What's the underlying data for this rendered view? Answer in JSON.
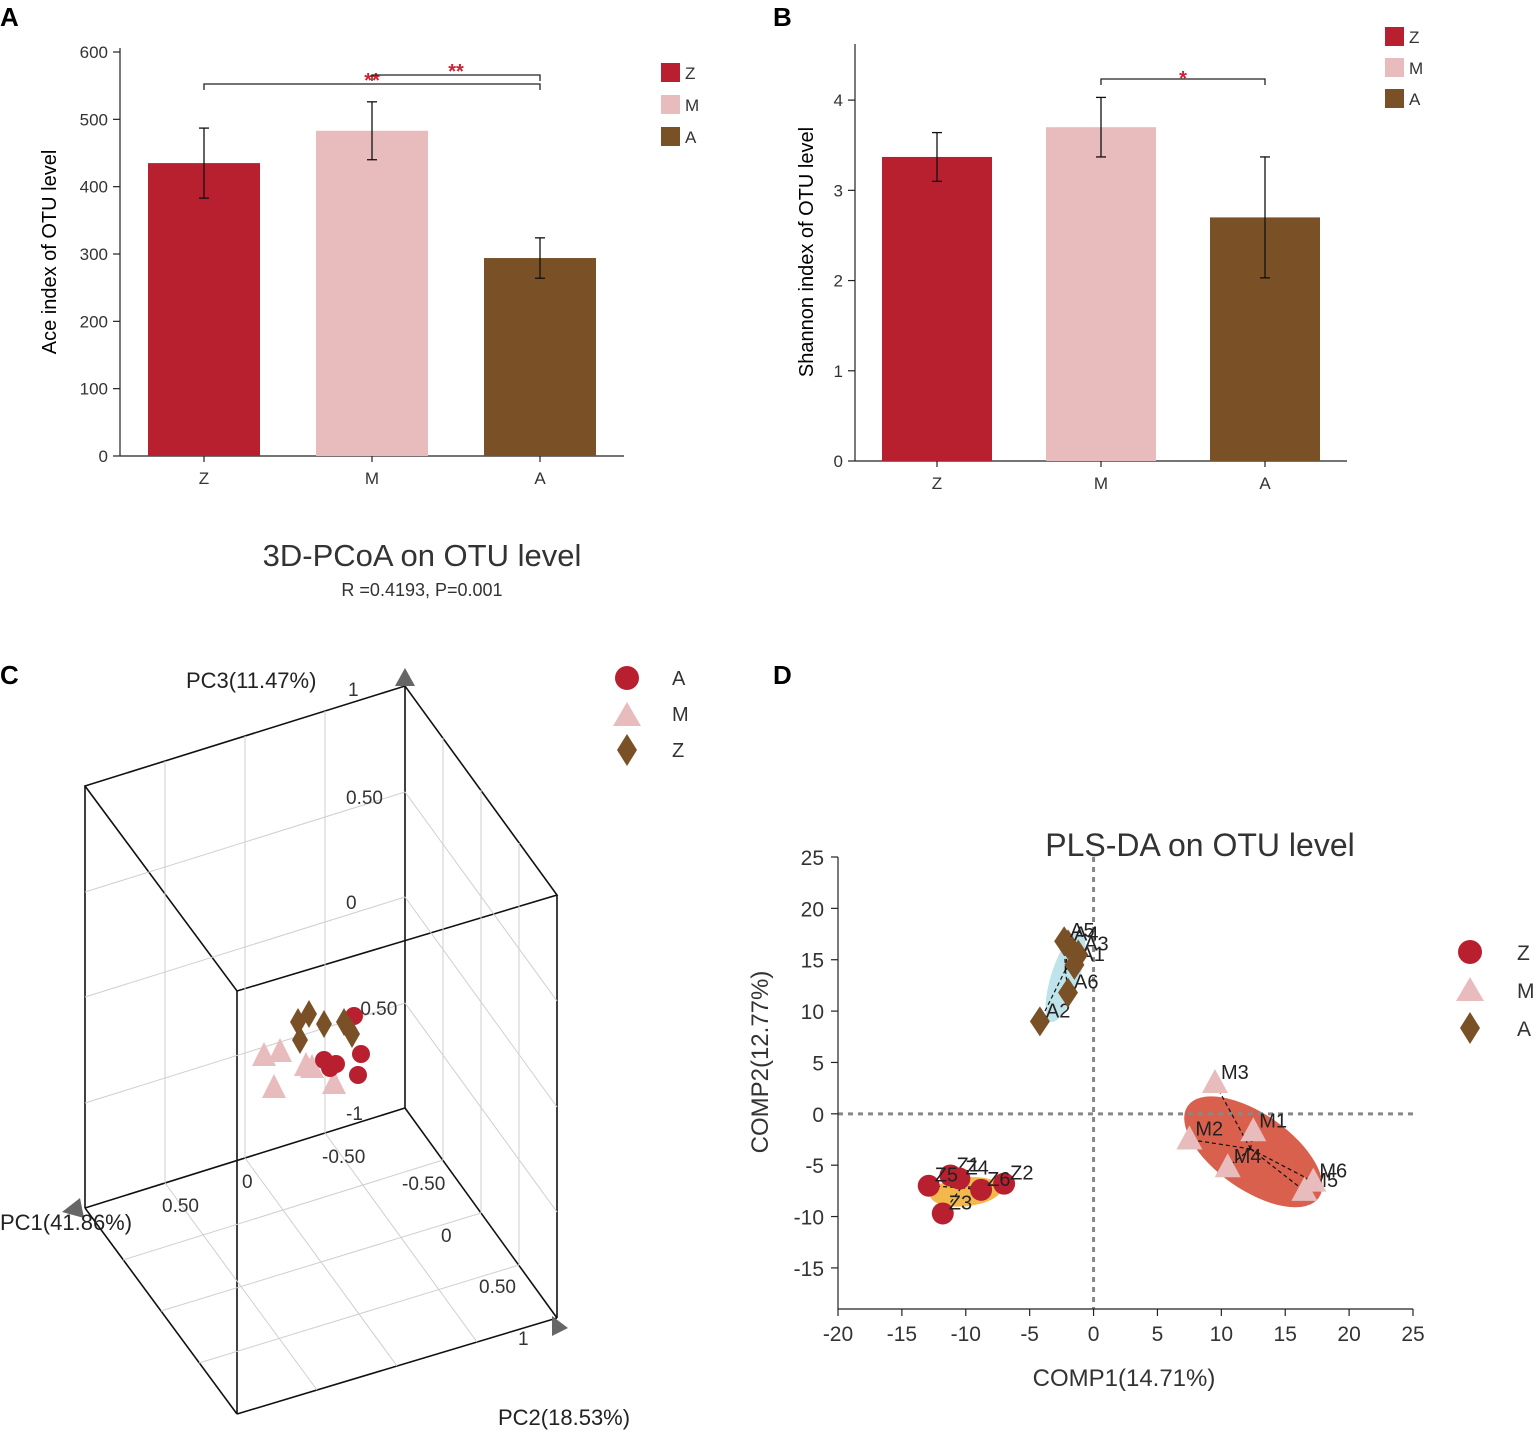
{
  "colors": {
    "Z": "#b8202f",
    "M": "#e8bcbd",
    "A": "#7a5126",
    "sig": "#d02030",
    "ellipseZ": "#f2b84b",
    "ellipseM": "#d9604d",
    "ellipseA": "#bfe3ea"
  },
  "chart_data": [
    {
      "panel": "A",
      "type": "bar",
      "categories": [
        "Z",
        "M",
        "A"
      ],
      "values": [
        435,
        483,
        294
      ],
      "errors": [
        52,
        43,
        30
      ],
      "ylabel": "Ace index of OTU level",
      "ylim": [
        0,
        600
      ],
      "yticks": [
        0,
        100,
        200,
        300,
        400,
        500,
        600
      ],
      "legend": [
        "Z",
        "M",
        "A"
      ],
      "significance": [
        {
          "from": "Z",
          "to": "A",
          "label": "**"
        },
        {
          "from": "M",
          "to": "A",
          "label": "**"
        }
      ]
    },
    {
      "panel": "B",
      "type": "bar",
      "categories": [
        "Z",
        "M",
        "A"
      ],
      "values": [
        3.37,
        3.7,
        2.7
      ],
      "errors": [
        0.27,
        0.33,
        0.67
      ],
      "ylabel": "Shannon index of OTU level",
      "ylim": [
        0,
        4.5
      ],
      "yticks": [
        0,
        1,
        2,
        3,
        4
      ],
      "legend": [
        "Z",
        "M",
        "A"
      ],
      "significance": [
        {
          "from": "M",
          "to": "A",
          "label": "*"
        }
      ]
    },
    {
      "panel": "C",
      "type": "scatter",
      "title": "3D-PCoA on OTU level",
      "subtitle": "R =0.4193, P=0.001",
      "axes": {
        "x": "PC1(41.86%)",
        "y": "PC2(18.53%)",
        "z": "PC3(11.47%)"
      },
      "tick_labels": [
        "1",
        "0.50",
        "0",
        "-0.50",
        "-1",
        "0.50",
        "0",
        "-0.50",
        "-0.50",
        "0",
        "0.50",
        "1"
      ],
      "legend": [
        "A",
        "M",
        "Z"
      ]
    },
    {
      "panel": "D",
      "type": "scatter",
      "title": "PLS-DA on OTU level",
      "xlabel": "COMP1(14.71%)",
      "ylabel": "COMP2(12.77%)",
      "xlim": [
        -20,
        25
      ],
      "ylim": [
        -19,
        25
      ],
      "xticks": [
        -20,
        -15,
        -10,
        -5,
        0,
        5,
        10,
        15,
        20,
        25
      ],
      "yticks": [
        -15,
        -10,
        -5,
        0,
        5,
        10,
        15,
        20,
        25
      ],
      "legend": [
        "Z",
        "M",
        "A"
      ],
      "series": [
        {
          "name": "Z",
          "points": [
            {
              "label": "Z1",
              "x": -11.2,
              "y": -6.0
            },
            {
              "label": "Z2",
              "x": -7.0,
              "y": -6.8
            },
            {
              "label": "Z3",
              "x": -11.8,
              "y": -9.7
            },
            {
              "label": "Z4",
              "x": -10.5,
              "y": -6.3
            },
            {
              "label": "Z5",
              "x": -12.9,
              "y": -7.0
            },
            {
              "label": "Z6",
              "x": -8.8,
              "y": -7.4
            }
          ]
        },
        {
          "name": "M",
          "points": [
            {
              "label": "M1",
              "x": 12.5,
              "y": -1.7
            },
            {
              "label": "M2",
              "x": 7.5,
              "y": -2.5
            },
            {
              "label": "M3",
              "x": 9.5,
              "y": 3.0
            },
            {
              "label": "M4",
              "x": 10.5,
              "y": -5.2
            },
            {
              "label": "M5",
              "x": 16.5,
              "y": -7.5
            },
            {
              "label": "M6",
              "x": 17.2,
              "y": -6.6
            }
          ]
        },
        {
          "name": "A",
          "points": [
            {
              "label": "A1",
              "x": -1.5,
              "y": 14.5
            },
            {
              "label": "A2",
              "x": -4.2,
              "y": 9.0
            },
            {
              "label": "A3",
              "x": -1.2,
              "y": 15.5
            },
            {
              "label": "A4",
              "x": -2.0,
              "y": 16.5
            },
            {
              "label": "A5",
              "x": -2.3,
              "y": 16.8
            },
            {
              "label": "A6",
              "x": -2.0,
              "y": 11.8
            }
          ]
        }
      ]
    }
  ],
  "labels": {
    "A": {
      "panel": "A",
      "axis": "Ace index of OTU level"
    },
    "B": {
      "panel": "B",
      "axis": "Shannon index of OTU level"
    },
    "C": {
      "panel": "C",
      "title": "3D-PCoA on OTU level",
      "subtitle": "R =0.4193, P=0.001",
      "pc1": "PC1(41.86%)",
      "pc2": "PC2(18.53%)",
      "pc3": "PC3(11.47%)"
    },
    "D": {
      "panel": "D",
      "title": "PLS-DA on OTU level",
      "xlabel": "COMP1(14.71%)",
      "ylabel": "COMP2(12.77%)"
    }
  }
}
